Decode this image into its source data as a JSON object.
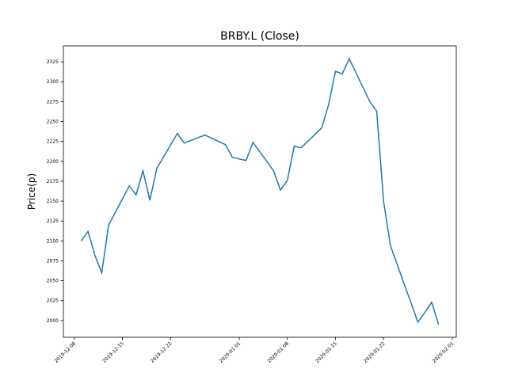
{
  "chart_data": {
    "type": "line",
    "title": "BRBY.L (Close)",
    "y_label": "Price(p)",
    "x": [
      "2019-12-09",
      "2019-12-10",
      "2019-12-11",
      "2019-12-12",
      "2019-12-13",
      "2019-12-16",
      "2019-12-17",
      "2019-12-18",
      "2019-12-19",
      "2019-12-20",
      "2019-12-23",
      "2019-12-24",
      "2019-12-27",
      "2019-12-30",
      "2019-12-31",
      "2020-01-02",
      "2020-01-03",
      "2020-01-06",
      "2020-01-07",
      "2020-01-08",
      "2020-01-09",
      "2020-01-10",
      "2020-01-13",
      "2020-01-14",
      "2020-01-15",
      "2020-01-16",
      "2020-01-17",
      "2020-01-20",
      "2020-01-21",
      "2020-01-22",
      "2020-01-23",
      "2020-01-27",
      "2020-01-28",
      "2020-01-29",
      "2020-01-30"
    ],
    "series": [
      {
        "name": "Close",
        "color": "#1f77b4",
        "values": [
          2100,
          2112,
          2082,
          2060,
          2120,
          2169,
          2158,
          2188,
          2151,
          2191,
          2235,
          2223,
          2233,
          2221,
          2205,
          2201,
          2224,
          2188,
          2164,
          2176,
          2219,
          2217,
          2242,
          2271,
          2313,
          2310,
          2329,
          2275,
          2263,
          2150,
          2094,
          1998,
          2010,
          2023,
          1995
        ]
      }
    ],
    "xlim": [
      "2019-12-06T10:00",
      "2020-02-01T14:00"
    ],
    "xticks": [
      "2019-12-08",
      "2019-12-15",
      "2019-12-22",
      "2020-01-01",
      "2020-01-08",
      "2020-01-15",
      "2020-01-22",
      "2020-02-01"
    ],
    "ylim": [
      1979,
      2345
    ],
    "yticks": [
      2000,
      2025,
      2050,
      2075,
      2100,
      2125,
      2150,
      2175,
      2200,
      2225,
      2250,
      2275,
      2300,
      2325
    ]
  }
}
